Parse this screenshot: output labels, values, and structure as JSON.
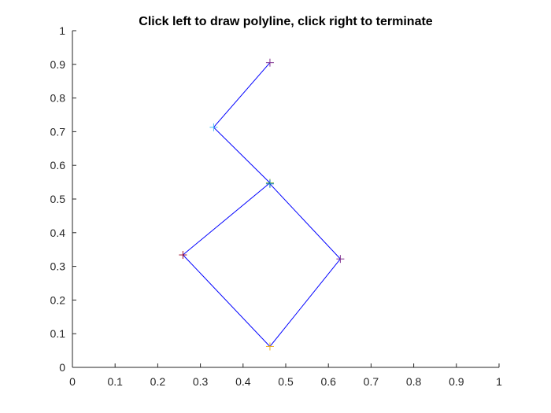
{
  "chart_data": {
    "type": "line",
    "title": "Click left to draw polyline, click right to terminate",
    "xlabel": "",
    "ylabel": "",
    "xlim": [
      0,
      1
    ],
    "ylim": [
      0,
      1
    ],
    "grid": false,
    "x_ticks": [
      "0",
      "0.1",
      "0.2",
      "0.3",
      "0.4",
      "0.5",
      "0.6",
      "0.7",
      "0.8",
      "0.9",
      "1"
    ],
    "y_ticks": [
      "0",
      "0.1",
      "0.2",
      "0.3",
      "0.4",
      "0.5",
      "0.6",
      "0.7",
      "0.8",
      "0.9",
      "1"
    ],
    "line_color": "#0000ff",
    "series": [
      {
        "x": [
          0.463,
          0.331,
          0.463,
          0.259,
          0.463,
          0.628,
          0.463
        ],
        "y": [
          0.905,
          0.713,
          0.548,
          0.334,
          0.062,
          0.322,
          0.545
        ]
      }
    ],
    "markers": [
      {
        "x": 0.463,
        "y": 0.905,
        "color": "#7e2f8e"
      },
      {
        "x": 0.331,
        "y": 0.713,
        "color": "#4dbeee"
      },
      {
        "x": 0.463,
        "y": 0.548,
        "color": "#77ac30"
      },
      {
        "x": 0.259,
        "y": 0.334,
        "color": "#a2142f"
      },
      {
        "x": 0.463,
        "y": 0.062,
        "color": "#edb120"
      },
      {
        "x": 0.628,
        "y": 0.322,
        "color": "#7e2f8e"
      },
      {
        "x": 0.463,
        "y": 0.545,
        "color": "#0072bd"
      }
    ]
  }
}
